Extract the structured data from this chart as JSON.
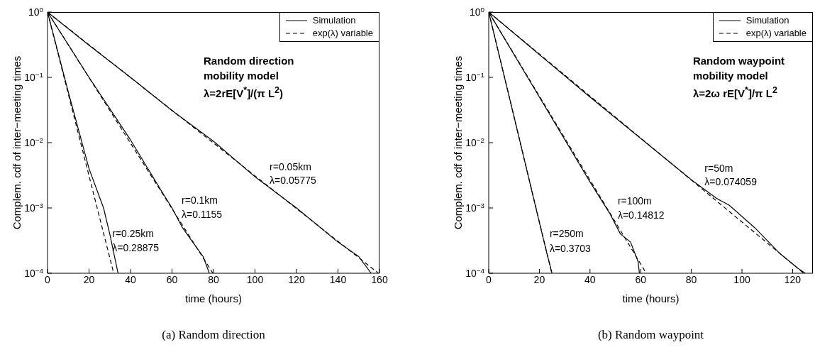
{
  "chart_data": [
    {
      "type": "line",
      "subtitle": "(a) Random direction",
      "xlabel": "time (hours)",
      "ylabel": "Complem. cdf of inter−meeting times",
      "log": "y",
      "legend": "top right",
      "xlim": [
        0,
        160
      ],
      "xticks": [
        0,
        20,
        40,
        60,
        80,
        100,
        120,
        140,
        160
      ],
      "ylim": [
        0.0001,
        1
      ],
      "yticks": [
        {
          "value": 0.0001,
          "label": "10$^{−4}$"
        },
        {
          "value": 0.001,
          "label": "10$^{−3}$"
        },
        {
          "value": 0.01,
          "label": "10$^{−2}$"
        },
        {
          "value": 0.1,
          "label": "10$^{−1}$"
        },
        {
          "value": 1,
          "label": "10$^{0}$"
        }
      ],
      "series": [
        {
          "name": "Simulation",
          "color": "#000000",
          "line_style": "solid",
          "x": [
            0,
            20,
            40,
            60,
            80,
            100,
            120,
            140,
            150,
            156
          ],
          "values": [
            1,
            0.31,
            0.1,
            0.031,
            0.0105,
            0.003,
            0.001,
            0.0003,
            0.00018,
            0.0001
          ]
        },
        {
          "name": "exp(λ) variable",
          "color": "#000000",
          "line_style": "dashed",
          "x": [
            0,
            159.5
          ],
          "values": [
            1,
            0.0001
          ]
        },
        {
          "color": "#000000",
          "line_style": "solid",
          "x": [
            0,
            20,
            40,
            55,
            60,
            65,
            70,
            75,
            78
          ],
          "values": [
            1,
            0.1,
            0.011,
            0.0018,
            0.001,
            0.0005,
            0.0003,
            0.00018,
            0.0001
          ]
        },
        {
          "color": "#000000",
          "line_style": "dashed",
          "x": [
            0,
            79.7
          ],
          "values": [
            1,
            0.0001
          ]
        },
        {
          "color": "#000000",
          "line_style": "solid",
          "x": [
            0,
            10,
            20,
            27,
            30,
            32,
            34
          ],
          "values": [
            1,
            0.06,
            0.004,
            0.001,
            0.0004,
            0.0002,
            0.0001
          ]
        },
        {
          "color": "#000000",
          "line_style": "dashed",
          "x": [
            0,
            31.9
          ],
          "values": [
            1,
            0.0001
          ]
        }
      ],
      "annotations": [
        "Random direction",
        "mobility model",
        "λ=2rE[V$^{*}$]/(π L$^{2}$)",
        "r=0.05km",
        "λ=0.05775",
        "r=0.1km",
        "λ=0.1155",
        "r=0.25km",
        "λ=0.28875"
      ]
    },
    {
      "type": "line",
      "subtitle": "(b) Random waypoint",
      "xlabel": "time (hours)",
      "ylabel": "Complem. cdf of inter−meeting times",
      "log": "y",
      "legend": "top right",
      "xlim": [
        0,
        128
      ],
      "xticks": [
        0,
        20,
        40,
        60,
        80,
        100,
        120
      ],
      "ylim": [
        0.0001,
        1
      ],
      "yticks": [
        {
          "value": 0.0001,
          "label": "10$^{−4}$"
        },
        {
          "value": 0.001,
          "label": "10$^{−3}$"
        },
        {
          "value": 0.01,
          "label": "10$^{−2}$"
        },
        {
          "value": 0.1,
          "label": "10$^{−1}$"
        },
        {
          "value": 1,
          "label": "10$^{0}$"
        }
      ],
      "series": [
        {
          "name": "Simulation",
          "color": "#000000",
          "line_style": "solid",
          "x": [
            0,
            40,
            80,
            90,
            95,
            105,
            115,
            122,
            125
          ],
          "values": [
            1,
            0.05,
            0.0027,
            0.0014,
            0.0011,
            0.0005,
            0.0002,
            0.00012,
            0.0001
          ]
        },
        {
          "name": "exp(λ) variable",
          "color": "#000000",
          "line_style": "dashed",
          "x": [
            0,
            124.4
          ],
          "values": [
            1,
            0.0001
          ]
        },
        {
          "color": "#000000",
          "line_style": "solid",
          "x": [
            0,
            20,
            40,
            48,
            52,
            56,
            59,
            59.5
          ],
          "values": [
            1,
            0.05,
            0.0025,
            0.0008,
            0.0004,
            0.0003,
            0.00015,
            0.0001
          ]
        },
        {
          "color": "#000000",
          "line_style": "dashed",
          "x": [
            0,
            62.2
          ],
          "values": [
            1,
            0.0001
          ]
        },
        {
          "color": "#000000",
          "line_style": "solid",
          "x": [
            0,
            10,
            20,
            23,
            25
          ],
          "values": [
            1,
            0.025,
            0.0006,
            0.0002,
            0.0001
          ]
        },
        {
          "color": "#000000",
          "line_style": "dashed",
          "x": [
            0,
            24.9
          ],
          "values": [
            1,
            0.0001
          ]
        }
      ],
      "annotations": [
        "Random waypoint",
        "mobility model",
        "λ=2ω rE[V$^{*}$]/π L$^{2}$",
        "r=50m",
        "λ=0.074059",
        "r=100m",
        "λ=0.14812",
        "r=250m",
        "λ=0.3703"
      ]
    }
  ]
}
